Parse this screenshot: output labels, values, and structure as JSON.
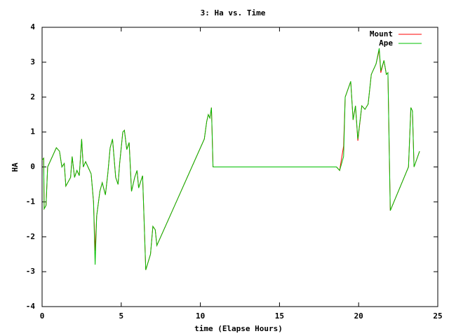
{
  "chart_data": {
    "type": "line",
    "title": "3: Ha vs. Time",
    "x_label": "time (Elapse Hours)",
    "y_label": "HA",
    "x": [
      0,
      0.1,
      0.13,
      0.25,
      0.35,
      0.9,
      1.1,
      1.25,
      1.4,
      1.5,
      1.8,
      1.9,
      2.05,
      2.2,
      2.35,
      2.5,
      2.6,
      2.75,
      2.95,
      3.1,
      3.25,
      3.35,
      3.45,
      3.65,
      3.8,
      4,
      4.15,
      4.3,
      4.45,
      4.65,
      4.8,
      4.9,
      5.1,
      5.2,
      5.35,
      5.5,
      5.65,
      5.85,
      6,
      6.1,
      6.35,
      6.55,
      6.85,
      7,
      7.15,
      7.25,
      10.25,
      10.4,
      10.5,
      10.6,
      10.7,
      10.8,
      18.6,
      18.8,
      19.05,
      19.15,
      19.5,
      19.65,
      19.8,
      19.95,
      20.2,
      20.4,
      20.6,
      20.8,
      21.1,
      21.3,
      21.4,
      21.6,
      21.75,
      21.85,
      22,
      23.15,
      23.3,
      23.4,
      23.5,
      23.85
    ],
    "series": [
      {
        "name": "Mount",
        "color": "#ff0000",
        "values": [
          0.2,
          0.25,
          -1.2,
          -1.1,
          0,
          0.55,
          0.45,
          0,
          0.1,
          -0.55,
          -0.3,
          0.3,
          -0.3,
          -0.1,
          -0.25,
          0.8,
          0,
          0.15,
          -0.05,
          -0.2,
          -1,
          -2.4,
          -1.4,
          -0.7,
          -0.45,
          -0.8,
          -0.2,
          0.55,
          0.8,
          -0.3,
          -0.5,
          0.1,
          1,
          1.05,
          0.5,
          0.7,
          -0.7,
          -0.3,
          -0.1,
          -0.6,
          -0.25,
          -2.95,
          -2.5,
          -1.7,
          -1.8,
          -2.25,
          0.8,
          1.3,
          1.5,
          1.4,
          1.7,
          0,
          0,
          -0.1,
          0.6,
          2,
          2.45,
          1.35,
          1.75,
          0.75,
          1.75,
          1.65,
          1.8,
          2.65,
          2.95,
          3.35,
          2.7,
          3.05,
          2.65,
          2.7,
          -1.25,
          0,
          1.7,
          1.6,
          0,
          0.45
        ]
      },
      {
        "name": "Ape",
        "color": "#00c000",
        "values": [
          0.2,
          0.25,
          -1.2,
          -1.1,
          0,
          0.55,
          0.45,
          0,
          0.1,
          -0.55,
          -0.3,
          0.3,
          -0.3,
          -0.1,
          -0.25,
          0.8,
          0,
          0.15,
          -0.05,
          -0.2,
          -1,
          -2.8,
          -1.4,
          -0.7,
          -0.45,
          -0.8,
          -0.2,
          0.55,
          0.8,
          -0.3,
          -0.5,
          0.1,
          1,
          1.05,
          0.5,
          0.7,
          -0.7,
          -0.3,
          -0.1,
          -0.6,
          -0.25,
          -2.95,
          -2.5,
          -1.7,
          -1.8,
          -2.25,
          0.8,
          1.3,
          1.5,
          1.4,
          1.7,
          0,
          0,
          -0.1,
          0.3,
          2,
          2.45,
          1.35,
          1.75,
          0.8,
          1.75,
          1.65,
          1.8,
          2.65,
          2.95,
          3.4,
          2.75,
          3.05,
          2.65,
          2.7,
          -1.25,
          0,
          1.7,
          1.6,
          0,
          0.45
        ]
      }
    ],
    "xlim": [
      0,
      25
    ],
    "xticks": [
      0,
      5,
      10,
      15,
      20,
      25
    ],
    "ylim": [
      -4,
      4
    ],
    "yticks": [
      -4,
      -3,
      -2,
      -1,
      0,
      1,
      2,
      3,
      4
    ],
    "legend": "top-right"
  }
}
